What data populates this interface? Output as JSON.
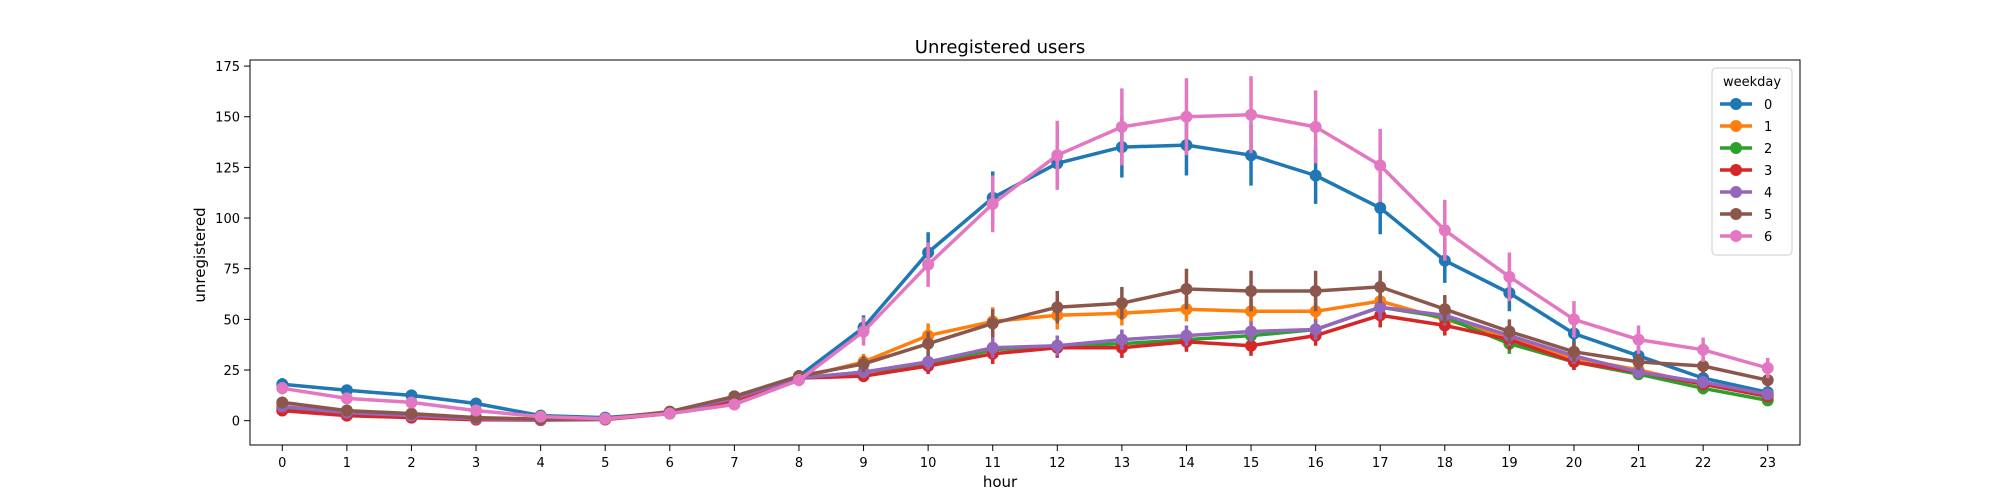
{
  "chart_data": {
    "type": "line",
    "title": "Unregistered users",
    "xlabel": "hour",
    "ylabel": "unregistered",
    "x": [
      0,
      1,
      2,
      3,
      4,
      5,
      6,
      7,
      8,
      9,
      10,
      11,
      12,
      13,
      14,
      15,
      16,
      17,
      18,
      19,
      20,
      21,
      22,
      23
    ],
    "ylim": [
      -12,
      178
    ],
    "yticks": [
      0,
      25,
      50,
      75,
      100,
      125,
      150,
      175
    ],
    "grid": false,
    "legend": {
      "title": "weekday",
      "placement": "top-right"
    },
    "series": [
      {
        "name": "0",
        "color": "#1f77b4",
        "values": [
          18,
          15,
          12.5,
          8.5,
          2.5,
          1.5,
          4,
          12,
          22,
          46,
          83,
          110,
          127,
          135,
          136,
          131,
          121,
          105,
          79,
          63,
          43,
          32,
          21,
          14
        ],
        "err": [
          3,
          2.5,
          2,
          2,
          1,
          0.5,
          1,
          2.5,
          3,
          6,
          10,
          13,
          13,
          15,
          15,
          15,
          14,
          13,
          11,
          9,
          6,
          5,
          4,
          3
        ]
      },
      {
        "name": "1",
        "color": "#ff7f0e",
        "values": [
          6,
          4,
          2.5,
          1,
          0.5,
          0.8,
          4,
          10,
          21,
          29,
          42,
          49,
          52,
          53,
          55,
          54,
          54,
          59,
          50,
          41,
          31,
          25,
          18,
          13
        ],
        "err": [
          2,
          1.5,
          1,
          0.5,
          0.3,
          0.3,
          1,
          2,
          3,
          4,
          6,
          7,
          7,
          6,
          6,
          6,
          6,
          6,
          5,
          5,
          4,
          3,
          3,
          2
        ]
      },
      {
        "name": "2",
        "color": "#2ca02c",
        "values": [
          6,
          3,
          2,
          1,
          0.5,
          0.8,
          4,
          11,
          21,
          24,
          28,
          35,
          37,
          38,
          40,
          42,
          45,
          56,
          51,
          38,
          29,
          23,
          16,
          10
        ],
        "err": [
          2,
          1,
          1,
          0.5,
          0.3,
          0.3,
          1,
          2,
          3,
          3,
          4,
          5,
          5,
          5,
          5,
          5,
          5,
          6,
          5,
          5,
          4,
          3,
          3,
          2
        ]
      },
      {
        "name": "3",
        "color": "#d62728",
        "values": [
          5,
          2.5,
          1.5,
          0.5,
          0.3,
          0.6,
          3.5,
          10,
          21,
          22,
          27,
          33,
          36,
          36,
          39,
          37,
          42,
          52,
          47,
          40,
          29,
          24,
          18,
          12
        ],
        "err": [
          2,
          1,
          1,
          0.5,
          0.3,
          0.3,
          1,
          2,
          3,
          3,
          4,
          5,
          5,
          5,
          5,
          5,
          5,
          6,
          5,
          5,
          4,
          3,
          3,
          2
        ]
      },
      {
        "name": "4",
        "color": "#9467bd",
        "values": [
          7,
          4,
          2.5,
          1,
          0.5,
          0.8,
          4,
          11,
          21,
          24,
          29,
          36,
          37,
          40,
          42,
          44,
          45,
          56,
          52,
          42,
          32,
          24,
          19,
          13
        ],
        "err": [
          2,
          1.5,
          1,
          0.5,
          0.3,
          0.3,
          1,
          2,
          3,
          3,
          4,
          5,
          5,
          5,
          5,
          5,
          5,
          6,
          5,
          5,
          4,
          3,
          3,
          2
        ]
      },
      {
        "name": "5",
        "color": "#8c564b",
        "values": [
          9,
          5,
          3.5,
          1.5,
          0.8,
          1,
          4.5,
          12,
          22,
          28,
          38,
          48,
          56,
          58,
          65,
          64,
          64,
          66,
          55,
          44,
          34,
          29,
          27,
          20
        ],
        "err": [
          2,
          1.5,
          1,
          0.5,
          0.5,
          0.5,
          1,
          2,
          3,
          4,
          6,
          7,
          8,
          8,
          10,
          10,
          10,
          8,
          7,
          6,
          5,
          4,
          4,
          3
        ]
      },
      {
        "name": "6",
        "color": "#e377c2",
        "values": [
          16,
          11,
          9,
          5,
          2,
          1,
          3.5,
          8,
          20,
          44,
          77,
          107,
          131,
          145,
          150,
          151,
          145,
          126,
          94,
          71,
          50,
          40,
          35,
          26
        ],
        "err": [
          3,
          2.5,
          2,
          2,
          1,
          0.5,
          1,
          2,
          3,
          7,
          11,
          14,
          17,
          19,
          19,
          19,
          18,
          18,
          15,
          12,
          9,
          7,
          6,
          5
        ]
      }
    ]
  }
}
